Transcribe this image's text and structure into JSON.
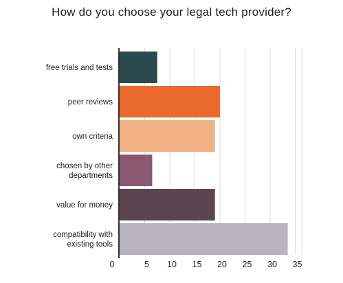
{
  "chart_data": {
    "type": "bar",
    "orientation": "horizontal",
    "title": "How do you choose your legal tech provider?",
    "xlabel": "",
    "ylabel": "",
    "xlim": [
      0,
      35
    ],
    "xticks": [
      0,
      5,
      10,
      15,
      20,
      25,
      30,
      35
    ],
    "grid": true,
    "legend": "none",
    "categories": [
      [
        "free trials and tests"
      ],
      [
        "peer reviews"
      ],
      [
        "own criteria"
      ],
      [
        "chosen by other",
        "departments"
      ],
      [
        "value for money"
      ],
      [
        "compatibility with",
        "existing tools"
      ]
    ],
    "values": [
      7.5,
      20,
      19,
      6.5,
      19,
      33.5
    ],
    "colors": [
      "#2b4a4e",
      "#ea6a2e",
      "#f0b283",
      "#8a5870",
      "#5b4650",
      "#b7b3bf"
    ]
  }
}
